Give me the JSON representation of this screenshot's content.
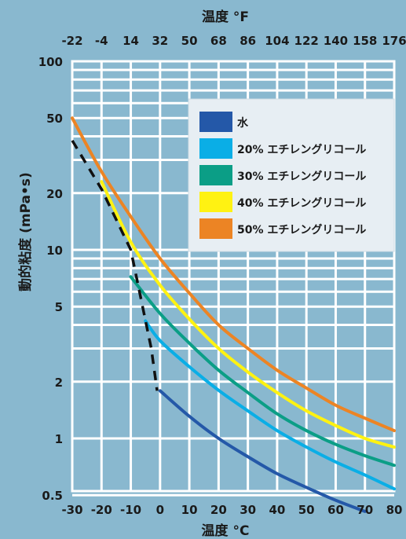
{
  "chart_data": {
    "type": "line",
    "top_axis_title": "温度 °F",
    "xlabel": "温度 °C",
    "ylabel": "動的粘度 (mPa•s)",
    "yscale": "log",
    "xlim": [
      -30,
      80
    ],
    "ylim": [
      0.4,
      100
    ],
    "x_ticks": [
      "-30",
      "-20",
      "-10",
      "0",
      "10",
      "20",
      "30",
      "40",
      "50",
      "60",
      "70",
      "80"
    ],
    "top_ticks": [
      "-22",
      "-4",
      "14",
      "32",
      "50",
      "68",
      "86",
      "104",
      "122",
      "140",
      "158",
      "176"
    ],
    "y_ticks": [
      {
        "value": 0.5,
        "label": "0.5"
      },
      {
        "value": 1,
        "label": "1"
      },
      {
        "value": 2,
        "label": "2"
      },
      {
        "value": 5,
        "label": "5"
      },
      {
        "value": 10,
        "label": "10"
      },
      {
        "value": 20,
        "label": "20"
      },
      {
        "value": 50,
        "label": "50"
      },
      {
        "value": 100,
        "label": "100"
      }
    ],
    "grid": true,
    "legend_position": "top-right",
    "series": [
      {
        "name": "水",
        "color": "#2458a8",
        "x": [
          0,
          10,
          20,
          30,
          40,
          50,
          60,
          70
        ],
        "y": [
          1.79,
          1.31,
          1.0,
          0.8,
          0.65,
          0.55,
          0.47,
          0.41
        ]
      },
      {
        "name": "20% エチレングリコール",
        "color": "#0aaee6",
        "x": [
          -5,
          0,
          10,
          20,
          30,
          40,
          50,
          60,
          70,
          80
        ],
        "y": [
          4.2,
          3.3,
          2.4,
          1.8,
          1.4,
          1.1,
          0.9,
          0.75,
          0.64,
          0.54
        ]
      },
      {
        "name": "30% エチレングリコール",
        "color": "#0b9e86",
        "x": [
          -10,
          0,
          10,
          20,
          30,
          40,
          50,
          60,
          70,
          80
        ],
        "y": [
          7.2,
          4.6,
          3.2,
          2.3,
          1.75,
          1.35,
          1.1,
          0.93,
          0.81,
          0.72
        ]
      },
      {
        "name": "40% エチレングリコール",
        "color": "#fff212",
        "x": [
          -20,
          -10,
          0,
          10,
          20,
          30,
          40,
          50,
          60,
          70,
          80
        ],
        "y": [
          23,
          11,
          6.5,
          4.3,
          3.0,
          2.25,
          1.75,
          1.4,
          1.17,
          1.0,
          0.9
        ]
      },
      {
        "name": "50% エチレングリコール",
        "color": "#ec8424",
        "x": [
          -30,
          -20,
          -10,
          0,
          10,
          20,
          30,
          40,
          50,
          60,
          70,
          80
        ],
        "y": [
          50,
          26,
          15,
          9,
          5.9,
          4.0,
          3.0,
          2.3,
          1.85,
          1.5,
          1.28,
          1.1
        ]
      }
    ],
    "freezing_line": {
      "style": "dashed",
      "color": "#111111",
      "x": [
        -30,
        -20,
        -10,
        -3,
        -1
      ],
      "y": [
        38,
        21,
        10,
        3.0,
        1.79
      ]
    }
  }
}
